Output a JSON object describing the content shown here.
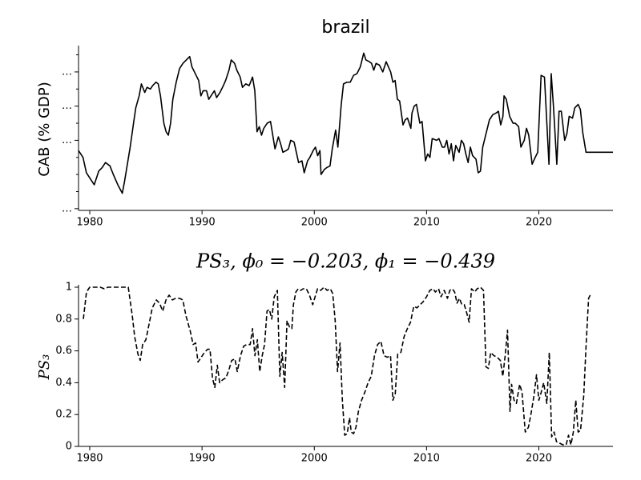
{
  "chart_data": [
    {
      "type": "line",
      "title": "brazil",
      "ylabel": "CAB (% GDP)",
      "color": "#000000",
      "linestyle": "solid",
      "xlim": [
        1979.0,
        2026.6
      ],
      "xticks": [
        1980,
        1990,
        2000,
        2010,
        2020
      ],
      "ylim": [
        -6.1,
        3.4
      ],
      "yticks": [
        {
          "value": 2,
          "label": "…"
        },
        {
          "value": 0,
          "label": "…"
        },
        {
          "value": -2,
          "label": "…"
        },
        {
          "value": -6,
          "label": "…"
        }
      ],
      "yminorticks": [
        3,
        1,
        -1,
        -3,
        -4,
        -5
      ],
      "x": [
        1979.0,
        1979.4,
        1979.7,
        1980.1,
        1980.4,
        1980.8,
        1981.1,
        1981.4,
        1981.8,
        1982.1,
        1982.5,
        1982.9,
        1983.1,
        1983.4,
        1983.6,
        1983.9,
        1984.1,
        1984.4,
        1984.6,
        1984.9,
        1985.1,
        1985.4,
        1985.6,
        1985.9,
        1986.1,
        1986.3,
        1986.6,
        1986.8,
        1987.0,
        1987.2,
        1987.4,
        1987.7,
        1988.0,
        1988.3,
        1988.6,
        1988.9,
        1989.1,
        1989.4,
        1989.7,
        1989.9,
        1990.1,
        1990.4,
        1990.6,
        1990.9,
        1991.1,
        1991.3,
        1991.6,
        1991.9,
        1992.1,
        1992.4,
        1992.6,
        1992.9,
        1993.1,
        1993.4,
        1993.6,
        1993.9,
        1994.2,
        1994.5,
        1994.7,
        1994.9,
        1995.1,
        1995.3,
        1995.5,
        1995.8,
        1996.1,
        1996.3,
        1996.5,
        1996.8,
        1997.0,
        1997.2,
        1997.5,
        1997.7,
        1997.9,
        1998.2,
        1998.4,
        1998.6,
        1998.9,
        1999.1,
        1999.4,
        1999.6,
        1999.9,
        2000.1,
        2000.3,
        2000.5,
        2000.6,
        2000.9,
        2001.1,
        2001.4,
        2001.6,
        2001.9,
        2002.1,
        2002.4,
        2002.6,
        2002.9,
        2003.2,
        2003.5,
        2003.8,
        2004.1,
        2004.4,
        2004.6,
        2004.9,
        2005.1,
        2005.3,
        2005.5,
        2005.8,
        2006.1,
        2006.4,
        2006.6,
        2006.8,
        2007.0,
        2007.2,
        2007.4,
        2007.6,
        2007.9,
        2008.1,
        2008.3,
        2008.6,
        2008.7,
        2008.9,
        2009.1,
        2009.4,
        2009.6,
        2009.9,
        2010.1,
        2010.3,
        2010.5,
        2010.9,
        2011.1,
        2011.4,
        2011.6,
        2011.8,
        2012.0,
        2012.2,
        2012.4,
        2012.6,
        2012.9,
        2013.1,
        2013.3,
        2013.5,
        2013.7,
        2013.9,
        2014.1,
        2014.4,
        2014.6,
        2014.8,
        2015.0,
        2015.3,
        2015.6,
        2015.9,
        2016.2,
        2016.4,
        2016.6,
        2016.8,
        2016.9,
        2017.1,
        2017.4,
        2017.7,
        2017.9,
        2018.2,
        2018.4,
        2018.7,
        2018.9,
        2019.1,
        2019.4,
        2019.6,
        2019.9,
        2020.2,
        2020.5,
        2020.9,
        2021.1,
        2021.3,
        2021.6,
        2021.8,
        2022.0,
        2022.3,
        2022.5,
        2022.7,
        2023.0,
        2023.2,
        2023.5,
        2023.7,
        2023.9,
        2024.2,
        2026.6
      ],
      "values": [
        -2.6,
        -3.0,
        -3.9,
        -4.3,
        -4.6,
        -3.8,
        -3.6,
        -3.3,
        -3.5,
        -4.0,
        -4.6,
        -5.1,
        -4.4,
        -3.2,
        -2.4,
        -1.0,
        -0.1,
        0.6,
        1.3,
        0.8,
        1.1,
        1.0,
        1.2,
        1.4,
        1.3,
        0.6,
        -1.0,
        -1.5,
        -1.7,
        -1.0,
        0.4,
        1.4,
        2.2,
        2.5,
        2.7,
        2.9,
        2.3,
        1.9,
        1.5,
        0.6,
        0.9,
        0.9,
        0.4,
        0.7,
        0.9,
        0.5,
        0.8,
        1.2,
        1.5,
        2.1,
        2.7,
        2.5,
        2.1,
        1.7,
        1.1,
        1.3,
        1.2,
        1.7,
        0.9,
        -1.5,
        -1.2,
        -1.7,
        -1.3,
        -1.0,
        -0.9,
        -1.7,
        -2.5,
        -1.8,
        -2.2,
        -2.7,
        -2.6,
        -2.5,
        -2.0,
        -2.1,
        -2.7,
        -3.3,
        -3.2,
        -3.9,
        -3.2,
        -3.0,
        -2.6,
        -2.4,
        -2.9,
        -2.6,
        -4.0,
        -3.7,
        -3.6,
        -3.5,
        -2.5,
        -1.4,
        -2.4,
        0.1,
        1.3,
        1.4,
        1.4,
        1.8,
        1.9,
        2.3,
        3.1,
        2.7,
        2.6,
        2.5,
        2.1,
        2.5,
        2.4,
        2.0,
        2.6,
        2.3,
        2.0,
        1.4,
        1.5,
        0.4,
        0.3,
        -1.1,
        -0.8,
        -0.7,
        -1.3,
        -0.4,
        0.0,
        0.1,
        -1.0,
        -0.9,
        -3.2,
        -2.8,
        -3.0,
        -1.9,
        -2.0,
        -1.9,
        -2.4,
        -2.4,
        -2.0,
        -2.8,
        -2.2,
        -3.2,
        -2.3,
        -2.7,
        -2.0,
        -2.2,
        -2.8,
        -3.3,
        -2.4,
        -2.9,
        -3.1,
        -3.9,
        -3.8,
        -2.4,
        -1.6,
        -0.8,
        -0.5,
        -0.4,
        -0.3,
        -1.1,
        -0.6,
        0.6,
        0.4,
        -0.6,
        -1.0,
        -1.0,
        -1.2,
        -2.4,
        -2.0,
        -1.3,
        -1.7,
        -3.4,
        -3.1,
        -2.7,
        1.8,
        1.7,
        -3.4,
        1.9,
        0.0,
        -3.4,
        -0.3,
        -0.3,
        -2.0,
        -1.6,
        -0.6,
        -0.7,
        -0.1,
        0.1,
        -0.2,
        -1.5,
        -2.7,
        -2.7
      ]
    },
    {
      "type": "line",
      "title": "PS₃, ϕ₀ = −0.203, ϕ₁ = −0.439",
      "ylabel": "PS₃",
      "color": "#000000",
      "linestyle": "dashed",
      "xlim": [
        1979.0,
        2026.6
      ],
      "xticks": [
        1980,
        1990,
        2000,
        2010,
        2020
      ],
      "ylim": [
        0,
        1
      ],
      "yticks": [
        0,
        0.2,
        0.4,
        0.6,
        0.8,
        1
      ],
      "x": [
        1979.43,
        1979.71,
        1980,
        1980.93,
        1981.29,
        1981.64,
        1983.43,
        1983.79,
        1984,
        1984.29,
        1984.5,
        1984.71,
        1985,
        1985.29,
        1985.57,
        1985.93,
        1986.21,
        1986.5,
        1986.79,
        1987.07,
        1987.36,
        1987.64,
        1988,
        1988.29,
        1988.57,
        1988.93,
        1989.21,
        1989.43,
        1989.64,
        1989.93,
        1990.21,
        1990.5,
        1990.71,
        1990.93,
        1991.14,
        1991.36,
        1991.57,
        1991.86,
        1992.14,
        1992.43,
        1992.64,
        1992.93,
        1993.14,
        1993.43,
        1993.71,
        1994,
        1994.29,
        1994.5,
        1994.71,
        1994.93,
        1995.14,
        1995.36,
        1995.57,
        1995.79,
        1996,
        1996.21,
        1996.43,
        1996.71,
        1996.93,
        1997.14,
        1997.36,
        1997.57,
        1997.79,
        1998,
        1998.14,
        1998.36,
        1998.57,
        1998.79,
        1999,
        1999.29,
        1999.57,
        1999.86,
        2000.07,
        2000.29,
        2000.57,
        2000.86,
        2001.14,
        2001.43,
        2001.64,
        2001.86,
        2002.07,
        2002.29,
        2002.5,
        2002.71,
        2002.93,
        2003.14,
        2003.29,
        2003.5,
        2003.71,
        2003.93,
        2004.21,
        2004.5,
        2004.79,
        2005.07,
        2005.36,
        2005.64,
        2005.93,
        2006.21,
        2006.5,
        2006.79,
        2007,
        2007.21,
        2007.43,
        2007.71,
        2008,
        2008.29,
        2008.57,
        2008.86,
        2009.14,
        2009.43,
        2009.71,
        2010,
        2010.29,
        2010.57,
        2010.79,
        2011.07,
        2011.29,
        2011.57,
        2011.86,
        2012.07,
        2012.29,
        2012.5,
        2012.71,
        2012.93,
        2013.14,
        2013.36,
        2013.57,
        2013.79,
        2014,
        2014.29,
        2014.5,
        2014.79,
        2015.07,
        2015.29,
        2015.5,
        2015.71,
        2016,
        2016.29,
        2016.57,
        2016.79,
        2017,
        2017.21,
        2017.43,
        2017.57,
        2017.79,
        2018,
        2018.29,
        2018.5,
        2018.79,
        2019.07,
        2019.29,
        2019.57,
        2019.79,
        2020,
        2020.21,
        2020.43,
        2020.71,
        2020.93,
        2021.14,
        2021.36,
        2021.57,
        2021.86,
        2022.14,
        2022.43,
        2022.64,
        2022.86,
        2023.07,
        2023.29,
        2023.5,
        2023.71,
        2024,
        2024.21,
        2024.43,
        2024.64
      ],
      "values": [
        0.8,
        0.97,
        1.0,
        1.0,
        0.99,
        1.0,
        1.0,
        0.82,
        0.69,
        0.58,
        0.54,
        0.64,
        0.67,
        0.77,
        0.87,
        0.92,
        0.9,
        0.85,
        0.92,
        0.95,
        0.92,
        0.93,
        0.93,
        0.92,
        0.82,
        0.73,
        0.64,
        0.65,
        0.53,
        0.56,
        0.59,
        0.61,
        0.61,
        0.43,
        0.37,
        0.51,
        0.4,
        0.42,
        0.43,
        0.49,
        0.54,
        0.55,
        0.47,
        0.57,
        0.63,
        0.64,
        0.64,
        0.74,
        0.57,
        0.67,
        0.47,
        0.57,
        0.64,
        0.85,
        0.86,
        0.8,
        0.94,
        0.98,
        0.44,
        0.59,
        0.37,
        0.79,
        0.75,
        0.74,
        0.89,
        0.97,
        0.99,
        0.98,
        0.99,
        0.99,
        0.95,
        0.89,
        0.94,
        0.99,
        0.98,
        1.0,
        0.98,
        0.99,
        0.96,
        0.79,
        0.47,
        0.65,
        0.29,
        0.07,
        0.08,
        0.18,
        0.09,
        0.08,
        0.12,
        0.22,
        0.29,
        0.34,
        0.4,
        0.44,
        0.57,
        0.64,
        0.66,
        0.57,
        0.56,
        0.57,
        0.29,
        0.33,
        0.58,
        0.59,
        0.69,
        0.74,
        0.78,
        0.88,
        0.87,
        0.89,
        0.91,
        0.94,
        0.98,
        0.99,
        0.97,
        0.99,
        0.94,
        0.98,
        0.93,
        0.98,
        0.99,
        0.97,
        0.9,
        0.93,
        0.89,
        0.89,
        0.84,
        0.78,
        0.99,
        0.97,
        0.99,
        1.0,
        0.98,
        0.5,
        0.49,
        0.59,
        0.57,
        0.56,
        0.54,
        0.44,
        0.57,
        0.73,
        0.22,
        0.39,
        0.29,
        0.27,
        0.39,
        0.34,
        0.09,
        0.12,
        0.2,
        0.32,
        0.45,
        0.29,
        0.34,
        0.4,
        0.27,
        0.59,
        0.06,
        0.09,
        0.03,
        0.02,
        0.01,
        0.01,
        0.07,
        0.01,
        0.09,
        0.29,
        0.09,
        0.1,
        0.32,
        0.64,
        0.93,
        0.96
      ]
    }
  ]
}
